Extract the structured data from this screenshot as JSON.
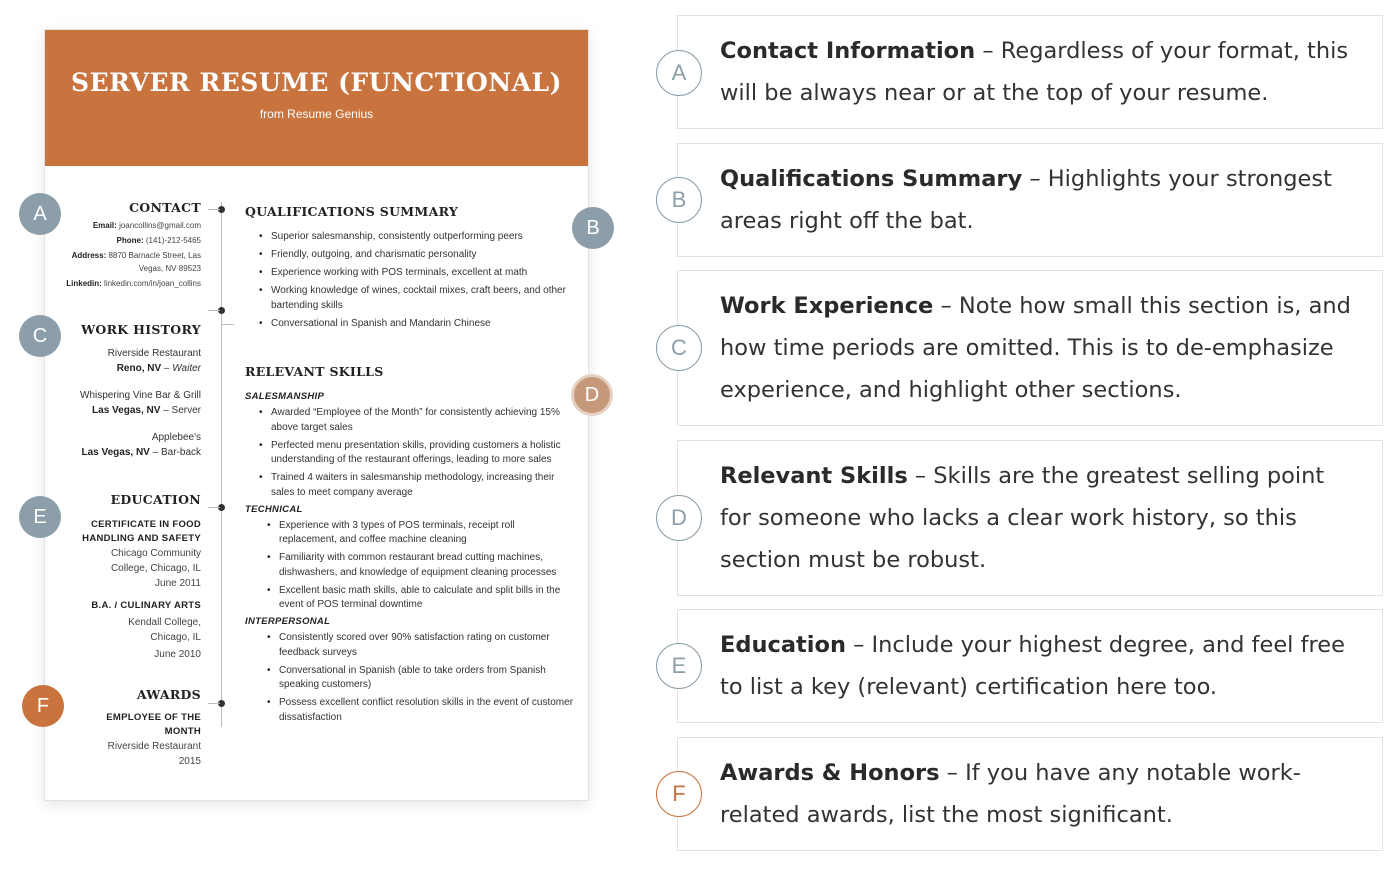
{
  "resume": {
    "title": "SERVER RESUME (FUNCTIONAL)",
    "subtitle": "from Resume Genius",
    "contact": {
      "heading": "CONTACT",
      "email_label": "Email:",
      "email": "joancollins@gmail.com",
      "phone_label": "Phone:",
      "phone": "(141)-212-5465",
      "address_label": "Address:",
      "address_line1": "8870 Barnacle Street, Las",
      "address_line2": "Vegas, NV 89523",
      "linkedin_label": "Linkedin:",
      "linkedin": "linkedin.com/in/joan_collins"
    },
    "work_history": {
      "heading": "WORK HISTORY",
      "jobs": [
        {
          "employer": "Riverside Restaurant",
          "location": "Reno, NV",
          "role": "Waiter"
        },
        {
          "employer": "Whispering Vine Bar & Grill",
          "location": "Las Vegas, NV",
          "role": "Server"
        },
        {
          "employer": "Applebee's",
          "location": "Las Vegas, NV",
          "role": "Bar-back"
        }
      ]
    },
    "education": {
      "heading": "EDUCATION",
      "items": [
        {
          "degree_line1": "CERTIFICATE IN FOOD",
          "degree_line2": "HANDLING AND SAFETY",
          "school_line1": "Chicago Community",
          "school_line2": "College, Chicago, IL",
          "date": "June 2011"
        },
        {
          "degree_line1": "B.A. / CULINARY ARTS",
          "school_line1": "Kendall College,",
          "school_line2": "Chicago, IL",
          "date": "June 2010"
        }
      ]
    },
    "awards": {
      "heading": "AWARDS",
      "award_line1": "EMPLOYEE OF THE",
      "award_line2": "MONTH",
      "org": "Riverside Restaurant",
      "year": "2015"
    },
    "qualifications": {
      "heading": "QUALIFICATIONS SUMMARY",
      "items": [
        "Superior salesmanship, consistently outperforming peers",
        "Friendly, outgoing, and charismatic personality",
        "Experience working with POS terminals, excellent at math",
        "Working knowledge of wines, cocktail mixes, craft beers, and other bartending skills",
        "Conversational in Spanish and Mandarin Chinese"
      ]
    },
    "skills": {
      "heading": "RELEVANT SKILLS",
      "salesmanship_label": "SALESMANSHIP",
      "salesmanship": [
        "Awarded “Employee of the Month” for consistently achieving 15% above target sales",
        "Perfected menu presentation skills, providing customers a holistic understanding of the restaurant offerings, leading to more sales",
        "Trained 4 waiters in salesmanship methodology, increasing their sales to meet company average"
      ],
      "technical_label": "TECHNICAL",
      "technical": [
        "Experience with 3 types of POS terminals, receipt roll replacement, and coffee machine cleaning",
        "Familiarity with common restaurant bread cutting machines, dishwashers, and knowledge of equipment cleaning processes",
        "Excellent basic math skills, able to calculate and split bills in the event of POS terminal downtime"
      ],
      "interpersonal_label": "INTERPERSONAL",
      "interpersonal": [
        "Consistently scored over 90% satisfaction rating on customer feedback surveys",
        "Conversational in Spanish (able to take orders from Spanish speaking customers)",
        "Possess excellent conflict resolution skills in the event of customer dissatisfaction"
      ]
    }
  },
  "badges": {
    "a": "A",
    "b": "B",
    "c": "C",
    "d": "D",
    "e": "E",
    "f": "F"
  },
  "explanations": [
    {
      "letter": "A",
      "title": "Contact Information",
      "text": " – Regardless of your format, this will be always near or at the top of your resume."
    },
    {
      "letter": "B",
      "title": "Qualifications Summary",
      "text": " – Highlights your strongest areas right off the bat."
    },
    {
      "letter": "C",
      "title": "Work Experience",
      "text": " – Note how small this section is, and how time periods are omitted. This is to de-emphasize experience, and highlight other sections."
    },
    {
      "letter": "D",
      "title": "Relevant Skills",
      "text": " – Skills are the greatest selling point for someone who lacks a clear work history, so this section must be robust."
    },
    {
      "letter": "E",
      "title": "Education",
      "text": " – Include your highest degree, and feel free to list a key (relevant) certification here too."
    },
    {
      "letter": "F",
      "title": "Awards & Honors",
      "text": " – If you have any notable work-related awards, list the most significant."
    }
  ],
  "colors": {
    "accent": "#c9733f",
    "badge_gray": "#8c9ea9"
  }
}
